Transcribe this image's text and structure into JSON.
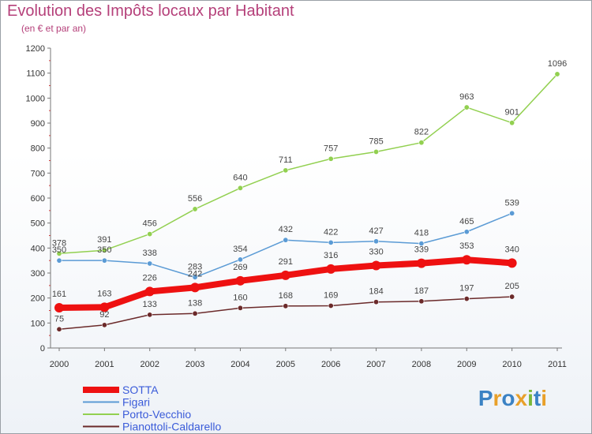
{
  "header": {
    "title": "Evolution des Impôts locaux par Habitant",
    "subtitle": "(en € et par an)"
  },
  "logo": {
    "text": "Proxiti",
    "letters": [
      "P",
      "r",
      "o",
      "x",
      "i",
      "t",
      "i"
    ],
    "letter_colors": [
      "#3b82c4",
      "#e8a02a",
      "#3b82c4",
      "#e8a02a",
      "#7ab83a",
      "#3b82c4",
      "#e8a02a"
    ]
  },
  "chart_data": {
    "type": "line",
    "x": [
      "2000",
      "2001",
      "2002",
      "2003",
      "2004",
      "2005",
      "2006",
      "2007",
      "2008",
      "2009",
      "2010",
      "2011"
    ],
    "ylim": [
      0,
      1200
    ],
    "yticks": [
      0,
      100,
      200,
      300,
      400,
      500,
      600,
      700,
      800,
      900,
      1000,
      1100,
      1200
    ],
    "grid": false,
    "legend_position": "bottom-left",
    "series": [
      {
        "name": "SOTTA",
        "color": "#ee1111",
        "values": [
          161,
          163,
          226,
          242,
          269,
          291,
          316,
          330,
          339,
          353,
          340,
          null
        ]
      },
      {
        "name": "Figari",
        "color": "#5b9bd5",
        "values": [
          350,
          350,
          338,
          283,
          354,
          432,
          422,
          427,
          418,
          465,
          539,
          null
        ]
      },
      {
        "name": "Porto-Vecchio",
        "color": "#92d050",
        "values": [
          378,
          391,
          456,
          556,
          640,
          711,
          757,
          785,
          822,
          963,
          901,
          1096
        ]
      },
      {
        "name": "Pianottoli-Caldarello",
        "color": "#6b2a2a",
        "values": [
          75,
          92,
          133,
          138,
          160,
          168,
          169,
          184,
          187,
          197,
          205,
          null
        ]
      }
    ]
  }
}
